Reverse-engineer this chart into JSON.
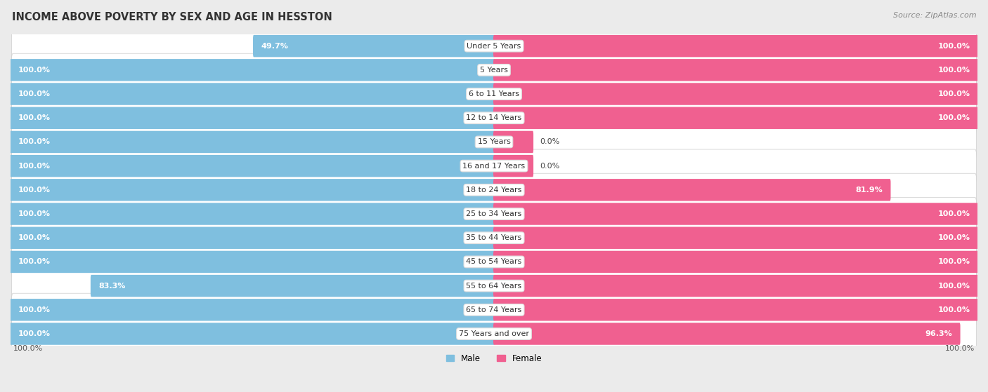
{
  "title": "INCOME ABOVE POVERTY BY SEX AND AGE IN HESSTON",
  "source": "Source: ZipAtlas.com",
  "male_color": "#7fbfdf",
  "female_color": "#f06090",
  "bg_color": "#ebebeb",
  "row_bg_color": "#f5f5f5",
  "categories": [
    "Under 5 Years",
    "5 Years",
    "6 to 11 Years",
    "12 to 14 Years",
    "15 Years",
    "16 and 17 Years",
    "18 to 24 Years",
    "25 to 34 Years",
    "35 to 44 Years",
    "45 to 54 Years",
    "55 to 64 Years",
    "65 to 74 Years",
    "75 Years and over"
  ],
  "male_values": [
    49.7,
    100.0,
    100.0,
    100.0,
    100.0,
    100.0,
    100.0,
    100.0,
    100.0,
    100.0,
    83.3,
    100.0,
    100.0
  ],
  "female_values": [
    100.0,
    100.0,
    100.0,
    100.0,
    0.0,
    0.0,
    81.9,
    100.0,
    100.0,
    100.0,
    100.0,
    100.0,
    96.3
  ],
  "male_labels": [
    "49.7%",
    "100.0%",
    "100.0%",
    "100.0%",
    "100.0%",
    "100.0%",
    "100.0%",
    "100.0%",
    "100.0%",
    "100.0%",
    "83.3%",
    "100.0%",
    "100.0%"
  ],
  "female_labels": [
    "100.0%",
    "100.0%",
    "100.0%",
    "100.0%",
    "0.0%",
    "0.0%",
    "81.9%",
    "100.0%",
    "100.0%",
    "100.0%",
    "100.0%",
    "100.0%",
    "96.3%"
  ],
  "small_female_values": [
    0.0,
    0.0
  ],
  "small_female_stub": 8.0,
  "title_fontsize": 10.5,
  "label_fontsize": 8.0,
  "tick_fontsize": 8.0,
  "source_fontsize": 8.0
}
